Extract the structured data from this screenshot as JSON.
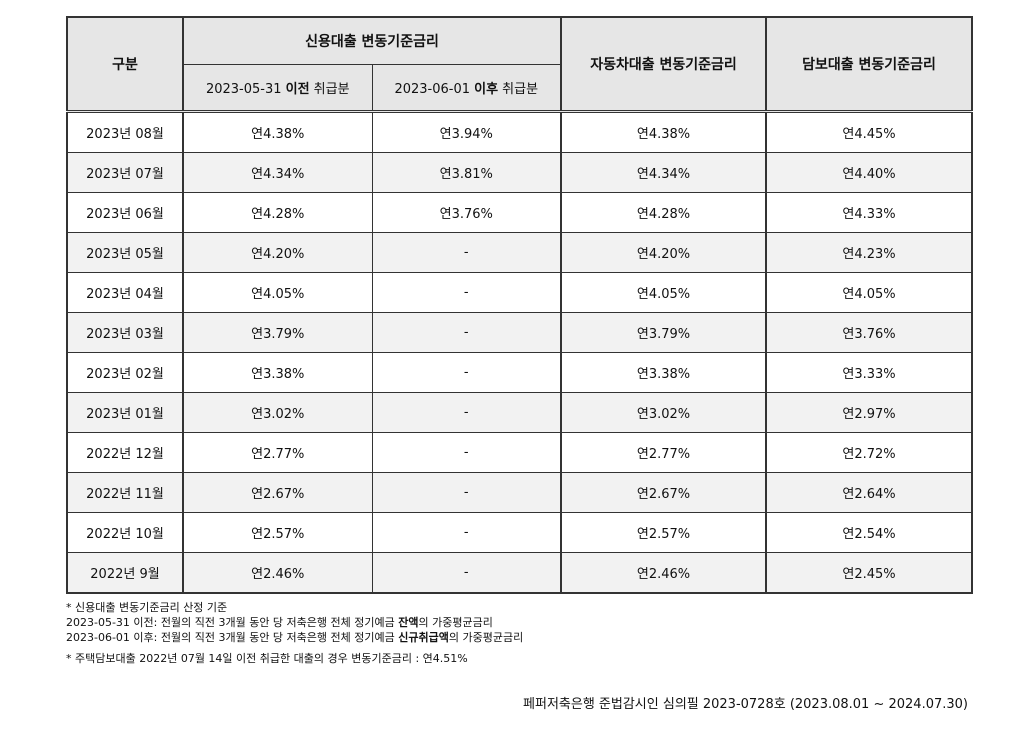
{
  "table": {
    "head": {
      "gubun": "구분",
      "credit_group": "신용대출 변동기준금리",
      "credit_before_prefix": "2023-05-31 ",
      "credit_before_bold": "이전",
      "credit_before_suffix": " 취급분",
      "credit_after_prefix": "2023-06-01 ",
      "credit_after_bold": "이후",
      "credit_after_suffix": " 취급분",
      "auto": "자동차대출 변동기준금리",
      "mortgage": "담보대출 변동기준금리"
    },
    "rows": [
      {
        "month": "2023년 08월",
        "credit_before": "연4.38%",
        "credit_after": "연3.94%",
        "auto": "연4.38%",
        "mortgage": "연4.45%"
      },
      {
        "month": "2023년 07월",
        "credit_before": "연4.34%",
        "credit_after": "연3.81%",
        "auto": "연4.34%",
        "mortgage": "연4.40%"
      },
      {
        "month": "2023년 06월",
        "credit_before": "연4.28%",
        "credit_after": "연3.76%",
        "auto": "연4.28%",
        "mortgage": "연4.33%"
      },
      {
        "month": "2023년 05월",
        "credit_before": "연4.20%",
        "credit_after": "-",
        "auto": "연4.20%",
        "mortgage": "연4.23%"
      },
      {
        "month": "2023년 04월",
        "credit_before": "연4.05%",
        "credit_after": "-",
        "auto": "연4.05%",
        "mortgage": "연4.05%"
      },
      {
        "month": "2023년 03월",
        "credit_before": "연3.79%",
        "credit_after": "-",
        "auto": "연3.79%",
        "mortgage": "연3.76%"
      },
      {
        "month": "2023년 02월",
        "credit_before": "연3.38%",
        "credit_after": "-",
        "auto": "연3.38%",
        "mortgage": "연3.33%"
      },
      {
        "month": "2023년 01월",
        "credit_before": "연3.02%",
        "credit_after": "-",
        "auto": "연3.02%",
        "mortgage": "연2.97%"
      },
      {
        "month": "2022년 12월",
        "credit_before": "연2.77%",
        "credit_after": "-",
        "auto": "연2.77%",
        "mortgage": "연2.72%"
      },
      {
        "month": "2022년 11월",
        "credit_before": "연2.67%",
        "credit_after": "-",
        "auto": "연2.67%",
        "mortgage": "연2.64%"
      },
      {
        "month": "2022년 10월",
        "credit_before": "연2.57%",
        "credit_after": "-",
        "auto": "연2.57%",
        "mortgage": "연2.54%"
      },
      {
        "month": "2022년 9월",
        "credit_before": "연2.46%",
        "credit_after": "-",
        "auto": "연2.46%",
        "mortgage": "연2.45%"
      }
    ]
  },
  "notes": {
    "line1": "* 신용대출 변동기준금리 산정 기준",
    "line2_prefix": "2023-05-31 이전: 전월의 직전 3개월 동안 당 저축은행 전체 정기예금 ",
    "line2_bold": "잔액",
    "line2_suffix": "의 가중평균금리",
    "line3_prefix": "2023-06-01 이후: 전월의 직전 3개월 동안 당 저축은행 전체 정기예금 ",
    "line3_bold": "신규취급액",
    "line3_suffix": "의 가중평균금리",
    "line4": "* 주택담보대출 2022년 07월 14일 이전 취급한 대출의 경우 변동기준금리 : 연4.51%"
  },
  "footer": "페퍼저축은행 준법감시인 심의필 2023-0728호 (2023.08.01 ~ 2024.07.30)"
}
